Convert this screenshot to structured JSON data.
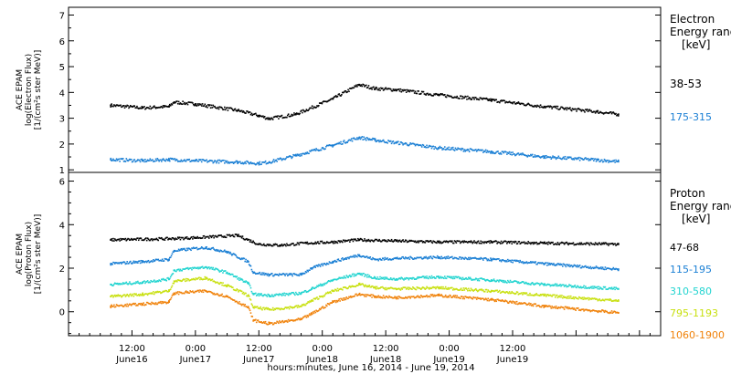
{
  "chart_data": [
    {
      "type": "scatter",
      "panel": "electron",
      "ylabel_lines": [
        "ACE EPAM",
        "log(Electron Flux)",
        "[1/(cm²s ster MeV)]"
      ],
      "ylim": [
        0.9,
        7.3
      ],
      "yticks": [
        1,
        2,
        3,
        4,
        5,
        6,
        7
      ],
      "legend_title": [
        "Electron",
        "Energy range",
        "[keV]"
      ],
      "series": [
        {
          "name": "38-53",
          "color": "#000000",
          "x": [
            8.0,
            14,
            19,
            20,
            24,
            32,
            36,
            38,
            43,
            50,
            55,
            58,
            62,
            70,
            80,
            90,
            100,
            104
          ],
          "y": [
            3.5,
            3.4,
            3.45,
            3.62,
            3.55,
            3.3,
            3.1,
            2.98,
            3.15,
            3.75,
            4.3,
            4.15,
            4.1,
            3.9,
            3.7,
            3.45,
            3.25,
            3.15
          ]
        },
        {
          "name": "175-315",
          "color": "#1a7fd4",
          "x": [
            8.0,
            14,
            19,
            24,
            32,
            36,
            38,
            43,
            50,
            55,
            58,
            62,
            70,
            80,
            90,
            100,
            104
          ],
          "y": [
            1.4,
            1.35,
            1.4,
            1.35,
            1.3,
            1.25,
            1.3,
            1.55,
            1.95,
            2.25,
            2.15,
            2.05,
            1.85,
            1.7,
            1.5,
            1.38,
            1.32
          ]
        }
      ]
    },
    {
      "type": "scatter",
      "panel": "proton",
      "ylabel_lines": [
        "ACE EPAM",
        "log(Proton Flux)",
        "[1/(cm²s ster MeV)]"
      ],
      "ylim": [
        -1.1,
        6.4
      ],
      "yticks": [
        0,
        2,
        4,
        6
      ],
      "legend_title": [
        "Proton",
        "Energy range",
        "[keV]"
      ],
      "series": [
        {
          "name": "47-68",
          "color": "#000000",
          "x": [
            8.0,
            19,
            24,
            32,
            36,
            40,
            45,
            50,
            55,
            62,
            70,
            80,
            90,
            104
          ],
          "y": [
            3.3,
            3.35,
            3.4,
            3.5,
            3.1,
            3.05,
            3.15,
            3.2,
            3.3,
            3.25,
            3.2,
            3.2,
            3.15,
            3.1
          ]
        },
        {
          "name": "115-195",
          "color": "#1a7fd4",
          "x": [
            8.0,
            14,
            19,
            20,
            26,
            30,
            34,
            35,
            38,
            44,
            46,
            50,
            55,
            58,
            62,
            70,
            80,
            90,
            104
          ],
          "y": [
            2.2,
            2.3,
            2.4,
            2.8,
            2.95,
            2.75,
            2.3,
            1.8,
            1.7,
            1.7,
            2.0,
            2.3,
            2.6,
            2.4,
            2.45,
            2.5,
            2.4,
            2.2,
            1.95
          ]
        },
        {
          "name": "310-580",
          "color": "#22d4d0",
          "x": [
            8.0,
            14,
            19,
            20,
            26,
            30,
            34,
            35,
            38,
            44,
            46,
            50,
            55,
            58,
            62,
            70,
            80,
            90,
            104
          ],
          "y": [
            1.25,
            1.35,
            1.5,
            1.9,
            2.05,
            1.8,
            1.3,
            0.8,
            0.75,
            0.85,
            1.05,
            1.45,
            1.75,
            1.55,
            1.5,
            1.6,
            1.45,
            1.25,
            1.05
          ]
        },
        {
          "name": "795-1193",
          "color": "#c8e010",
          "x": [
            8.0,
            14,
            19,
            20,
            26,
            30,
            34,
            35,
            38,
            44,
            46,
            50,
            55,
            58,
            62,
            70,
            80,
            90,
            104
          ],
          "y": [
            0.7,
            0.8,
            0.95,
            1.4,
            1.55,
            1.2,
            0.75,
            0.2,
            0.1,
            0.25,
            0.5,
            0.95,
            1.25,
            1.1,
            1.05,
            1.1,
            0.95,
            0.75,
            0.5
          ]
        },
        {
          "name": "1060-1900",
          "color": "#f0820a",
          "x": [
            8.0,
            14,
            19,
            20,
            26,
            30,
            34,
            35,
            38,
            44,
            46,
            50,
            55,
            58,
            62,
            70,
            80,
            90,
            104
          ],
          "y": [
            0.25,
            0.35,
            0.45,
            0.85,
            0.95,
            0.7,
            0.2,
            -0.4,
            -0.55,
            -0.35,
            -0.1,
            0.45,
            0.8,
            0.7,
            0.65,
            0.75,
            0.55,
            0.25,
            -0.05
          ]
        }
      ]
    }
  ],
  "xaxis": {
    "label": "hours:minutes, June 16, 2014 - June 19, 2014",
    "xlim": [
      0,
      112
    ],
    "ticks": [
      {
        "x": 12,
        "time": "12:00",
        "date": "June16"
      },
      {
        "x": 24,
        "time": "0:00",
        "date": "June17"
      },
      {
        "x": 36,
        "time": "12:00",
        "date": "June17"
      },
      {
        "x": 48,
        "time": "0:00",
        "date": "June18"
      },
      {
        "x": 60,
        "time": "12:00",
        "date": "June18"
      },
      {
        "x": 72,
        "time": "0:00",
        "date": "June19"
      },
      {
        "x": 84,
        "time": "12:00",
        "date": "June19"
      }
    ]
  }
}
